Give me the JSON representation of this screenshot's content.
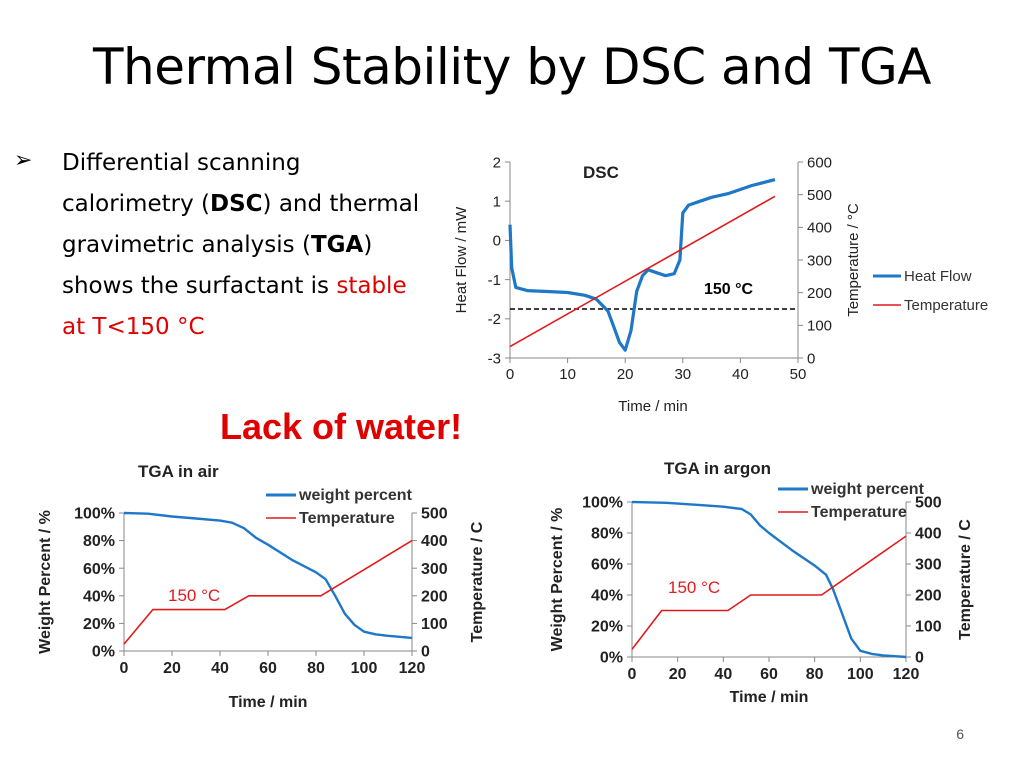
{
  "title": "Thermal Stability by DSC and TGA",
  "bullet": {
    "symbol": "➢",
    "parts": [
      "Differential scanning calorimetry (",
      "DSC",
      ") and thermal gravimetric analysis (",
      "TGA",
      ") shows the surfactant is "
    ],
    "highlight": "stable at T<150 °C"
  },
  "callout": "Lack of water!",
  "page_number": "6",
  "colors": {
    "blue": "#1f77c8",
    "red": "#e11b1b",
    "accent_text": "#e00000"
  },
  "chart_data": [
    {
      "id": "dsc",
      "type": "line",
      "title": "DSC",
      "xlabel": "Time / min",
      "ylabel": "Heat Flow / mW",
      "y2label": "Temperature / °C",
      "xlim": [
        0,
        50
      ],
      "ylim": [
        -3,
        2
      ],
      "y2lim": [
        0,
        600
      ],
      "xticks": [
        0,
        10,
        20,
        30,
        40,
        50
      ],
      "yticks": [
        -3,
        -2,
        -1,
        0,
        1,
        2
      ],
      "y2ticks": [
        0,
        100,
        200,
        300,
        400,
        500,
        600
      ],
      "legend_position": "right",
      "annotation": "150 °C",
      "reference_line_y2": 150,
      "series": [
        {
          "name": "Heat Flow",
          "axis": "left",
          "color": "#1f77c8",
          "x": [
            0,
            0.3,
            1,
            3,
            6,
            10,
            13,
            15,
            17,
            18,
            19,
            20,
            21,
            22,
            23,
            24,
            25,
            27,
            28.5,
            29.5,
            30,
            31,
            33,
            35,
            38,
            42,
            46
          ],
          "y": [
            0.4,
            -0.7,
            -1.2,
            -1.28,
            -1.3,
            -1.33,
            -1.4,
            -1.5,
            -1.8,
            -2.2,
            -2.6,
            -2.8,
            -2.3,
            -1.3,
            -0.9,
            -0.75,
            -0.8,
            -0.9,
            -0.85,
            -0.5,
            0.7,
            0.9,
            1.0,
            1.1,
            1.2,
            1.4,
            1.55
          ]
        },
        {
          "name": "Temperature",
          "axis": "right",
          "color": "#e11b1b",
          "x": [
            0,
            46
          ],
          "y": [
            35,
            495
          ]
        }
      ]
    },
    {
      "id": "tga-air",
      "type": "line",
      "title": "TGA in air",
      "xlabel": "Time / min",
      "ylabel": "Weight Percent / %",
      "y2label": "Temperature / C",
      "xlim": [
        0,
        120
      ],
      "ylim": [
        0,
        100
      ],
      "y2lim": [
        0,
        500
      ],
      "xticks": [
        0,
        20,
        40,
        60,
        80,
        100,
        120
      ],
      "yticks": [
        "0%",
        "20%",
        "40%",
        "60%",
        "80%",
        "100%"
      ],
      "y2ticks": [
        0,
        100,
        200,
        300,
        400,
        500
      ],
      "legend_position": "top-right",
      "annotation": "150 °C",
      "series": [
        {
          "name": "weight percent",
          "axis": "left",
          "color": "#1f77c8",
          "x": [
            0,
            10,
            20,
            30,
            40,
            45,
            50,
            55,
            60,
            70,
            80,
            84,
            88,
            92,
            96,
            100,
            105,
            110,
            120
          ],
          "y": [
            100,
            99.5,
            97.5,
            96,
            94.5,
            93,
            89,
            82,
            77,
            66,
            57,
            52,
            40,
            27,
            19,
            14,
            12,
            11,
            9.5
          ]
        },
        {
          "name": "Temperature",
          "axis": "right",
          "color": "#e11b1b",
          "x": [
            0,
            12,
            42,
            52,
            82,
            120
          ],
          "y": [
            25,
            150,
            150,
            200,
            200,
            400
          ]
        }
      ]
    },
    {
      "id": "tga-argon",
      "type": "line",
      "title": "TGA in argon",
      "xlabel": "Time / min",
      "ylabel": "Weight Percent / %",
      "y2label": "Temperature / C",
      "xlim": [
        0,
        120
      ],
      "ylim": [
        0,
        100
      ],
      "y2lim": [
        0,
        500
      ],
      "xticks": [
        0,
        20,
        40,
        60,
        80,
        100,
        120
      ],
      "yticks": [
        "0%",
        "20%",
        "40%",
        "60%",
        "80%",
        "100%"
      ],
      "y2ticks": [
        0,
        100,
        200,
        300,
        400,
        500
      ],
      "legend_position": "top-right",
      "annotation": "150 °C",
      "series": [
        {
          "name": "weight percent",
          "axis": "left",
          "color": "#1f77c8",
          "x": [
            0,
            15,
            30,
            40,
            48,
            52,
            56,
            60,
            70,
            80,
            85,
            88,
            92,
            96,
            100,
            105,
            110,
            115,
            120
          ],
          "y": [
            100,
            99.5,
            98,
            97,
            95.5,
            92,
            85,
            80,
            69,
            59,
            53,
            44,
            28,
            12,
            4,
            2,
            1,
            0.5,
            0
          ]
        },
        {
          "name": "Temperature",
          "axis": "right",
          "color": "#e11b1b",
          "x": [
            0,
            13,
            42,
            52,
            83,
            120
          ],
          "y": [
            25,
            150,
            150,
            200,
            200,
            390
          ]
        }
      ]
    }
  ]
}
